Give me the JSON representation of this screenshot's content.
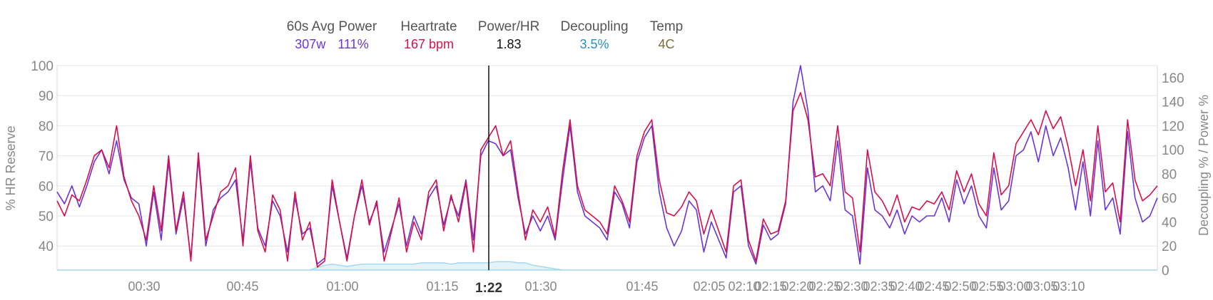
{
  "legend": {
    "power": {
      "title": "60s Avg Power",
      "watts": "307w",
      "percent": "111%",
      "color": "#6a35d6"
    },
    "heartrate": {
      "title": "Heartrate",
      "value": "167 bpm",
      "color": "#d6104a"
    },
    "power_hr": {
      "title": "Power/HR",
      "value": "1.83",
      "color": "#111111"
    },
    "decoupling": {
      "title": "Decoupling",
      "value": "3.5%",
      "color": "#2a8fbf"
    },
    "temp": {
      "title": "Temp",
      "value": "4C",
      "color": "#7a6a3a"
    }
  },
  "chart_data": {
    "type": "line",
    "ylabel_left": "% HR Reserve",
    "ylabel_right": "Decoupling % / Power %",
    "left_ticks": [
      100,
      90,
      80,
      70,
      60,
      50,
      40
    ],
    "ylim_left": [
      32,
      100
    ],
    "right_ticks": [
      160,
      140,
      120,
      100,
      80,
      60,
      40,
      20,
      0
    ],
    "ylim_right": [
      0,
      170
    ],
    "grid": true,
    "cursor_label": "1:22",
    "x_tick_labels": [
      "00:30",
      "00:45",
      "01:00",
      "01:15",
      "1:22",
      "01:30",
      "01:45",
      "02:05",
      "02:10",
      "02:15",
      "02:20",
      "02:25",
      "02:30",
      "02:35",
      "02:40",
      "02:45",
      "02:50",
      "02:55",
      "03:00",
      "03:05",
      "03:10"
    ],
    "series": [
      {
        "name": "Heartrate",
        "color": "#d6104a",
        "values": [
          55,
          50,
          57,
          55,
          62,
          70,
          72,
          66,
          80,
          63,
          55,
          50,
          42,
          60,
          45,
          70,
          45,
          58,
          35,
          71,
          42,
          50,
          58,
          60,
          66,
          40,
          70,
          45,
          38,
          57,
          52,
          35,
          58,
          42,
          48,
          33,
          35,
          62,
          48,
          35,
          50,
          62,
          47,
          55,
          35,
          45,
          56,
          38,
          48,
          42,
          58,
          62,
          45,
          57,
          48,
          61,
          38,
          72,
          76,
          80,
          70,
          75,
          58,
          42,
          52,
          48,
          53,
          43,
          65,
          82,
          60,
          52,
          50,
          48,
          44,
          60,
          55,
          48,
          70,
          78,
          82,
          62,
          51,
          50,
          53,
          58,
          55,
          44,
          52,
          45,
          38,
          60,
          62,
          42,
          35,
          49,
          44,
          45,
          55,
          85,
          91,
          82,
          63,
          64,
          60,
          80,
          58,
          56,
          38,
          72,
          58,
          55,
          50,
          57,
          48,
          53,
          52,
          55,
          54,
          58,
          52,
          65,
          58,
          64,
          54,
          50,
          71,
          57,
          60,
          74,
          78,
          82,
          77,
          85,
          79,
          83,
          73,
          60,
          72,
          55,
          80,
          58,
          61,
          48,
          82,
          62,
          55,
          57,
          60
        ]
      },
      {
        "name": "60s Avg Power",
        "color": "#6a35d6",
        "values": [
          58,
          54,
          60,
          53,
          60,
          68,
          72,
          64,
          75,
          62,
          56,
          54,
          40,
          58,
          42,
          68,
          44,
          56,
          36,
          69,
          40,
          52,
          56,
          58,
          62,
          42,
          68,
          46,
          40,
          55,
          50,
          38,
          56,
          44,
          46,
          34,
          36,
          60,
          48,
          36,
          50,
          60,
          48,
          54,
          38,
          46,
          54,
          40,
          50,
          44,
          56,
          60,
          47,
          56,
          50,
          62,
          42,
          70,
          75,
          74,
          70,
          72,
          56,
          44,
          50,
          45,
          50,
          42,
          62,
          80,
          58,
          50,
          48,
          46,
          42,
          58,
          54,
          46,
          68,
          76,
          80,
          58,
          46,
          40,
          45,
          55,
          52,
          38,
          48,
          42,
          36,
          58,
          60,
          40,
          34,
          47,
          42,
          44,
          54,
          88,
          100,
          85,
          58,
          60,
          55,
          75,
          52,
          50,
          34,
          66,
          52,
          50,
          46,
          52,
          44,
          50,
          48,
          50,
          50,
          56,
          48,
          62,
          54,
          60,
          50,
          46,
          66,
          52,
          55,
          70,
          72,
          78,
          68,
          80,
          70,
          76,
          66,
          52,
          68,
          50,
          75,
          52,
          56,
          44,
          78,
          56,
          48,
          50,
          56
        ]
      },
      {
        "name": "Decoupling",
        "color": "#a6d8ee",
        "values": [
          0,
          0,
          0,
          0,
          0,
          0,
          0,
          0,
          0,
          0,
          0,
          0,
          0,
          0,
          0,
          0,
          0,
          0,
          0,
          0,
          0,
          0,
          0,
          0,
          0,
          0,
          0,
          0,
          0,
          0,
          0,
          0,
          0,
          0,
          0,
          2,
          4,
          5,
          4,
          3,
          4,
          5,
          5,
          5,
          5,
          5,
          5,
          5,
          5,
          6,
          6,
          6,
          6,
          5,
          6,
          6,
          6,
          6,
          6,
          7,
          7,
          7,
          6,
          6,
          4,
          3,
          2,
          1,
          0,
          0,
          0,
          0,
          0,
          0,
          0,
          0,
          0,
          0,
          0,
          0,
          0,
          0,
          0,
          0,
          0,
          0,
          0,
          0,
          0,
          0,
          0,
          0,
          0,
          0,
          0,
          0,
          0,
          0,
          0,
          0,
          0,
          0,
          0,
          0,
          0,
          0,
          0,
          0,
          0,
          0,
          0,
          0,
          0,
          0,
          0,
          0,
          0,
          0,
          0,
          0,
          0,
          0,
          0,
          0,
          0,
          0,
          0,
          0,
          0,
          0,
          0,
          0,
          0,
          0,
          0,
          0,
          0,
          0,
          0,
          0,
          0,
          0,
          0,
          0,
          0,
          0,
          0,
          0,
          0
        ]
      }
    ]
  }
}
